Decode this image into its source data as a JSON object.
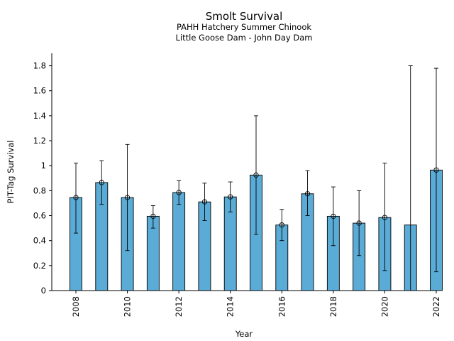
{
  "chart_data": {
    "type": "bar",
    "title": "Smolt Survival",
    "subtitle": [
      "PAHH Hatchery Summer Chinook",
      "Little Goose Dam - John Day Dam"
    ],
    "xlabel": "Year",
    "ylabel": "PIT-Tag Survival",
    "ylim": [
      0,
      1.9
    ],
    "yticks": [
      0,
      0.2,
      0.4,
      0.6,
      0.8,
      1,
      1.2,
      1.4,
      1.6,
      1.8
    ],
    "ytick_labels": [
      "0",
      "0.2",
      "0.4",
      "0.6",
      "0.8",
      "1",
      "1.2",
      "1.4",
      "1.6",
      "1.8"
    ],
    "xtick_labels": [
      "2008",
      "2010",
      "2012",
      "2014",
      "2016",
      "2018",
      "2020",
      "2022"
    ],
    "grid": false,
    "legend": false,
    "bar_color": "#5aabd6",
    "categories": [
      2008,
      2009,
      2010,
      2011,
      2012,
      2013,
      2014,
      2015,
      2016,
      2017,
      2018,
      2019,
      2020,
      2021,
      2022
    ],
    "values": [
      0.745,
      0.865,
      0.745,
      0.595,
      0.785,
      0.71,
      0.75,
      0.925,
      0.525,
      0.775,
      0.595,
      0.54,
      0.585,
      0.525,
      0.965
    ],
    "points": [
      0.745,
      0.865,
      0.745,
      0.595,
      0.785,
      0.71,
      0.75,
      0.925,
      0.525,
      0.775,
      0.595,
      0.54,
      0.585,
      null,
      0.965
    ],
    "error_lower": [
      0.46,
      0.69,
      0.32,
      0.5,
      0.69,
      0.56,
      0.63,
      0.45,
      0.4,
      0.6,
      0.36,
      0.28,
      0.16,
      0.0,
      0.15
    ],
    "error_upper": [
      1.02,
      1.04,
      1.17,
      0.68,
      0.88,
      0.86,
      0.87,
      1.4,
      0.65,
      0.96,
      0.83,
      0.8,
      1.02,
      1.8,
      1.78
    ]
  }
}
